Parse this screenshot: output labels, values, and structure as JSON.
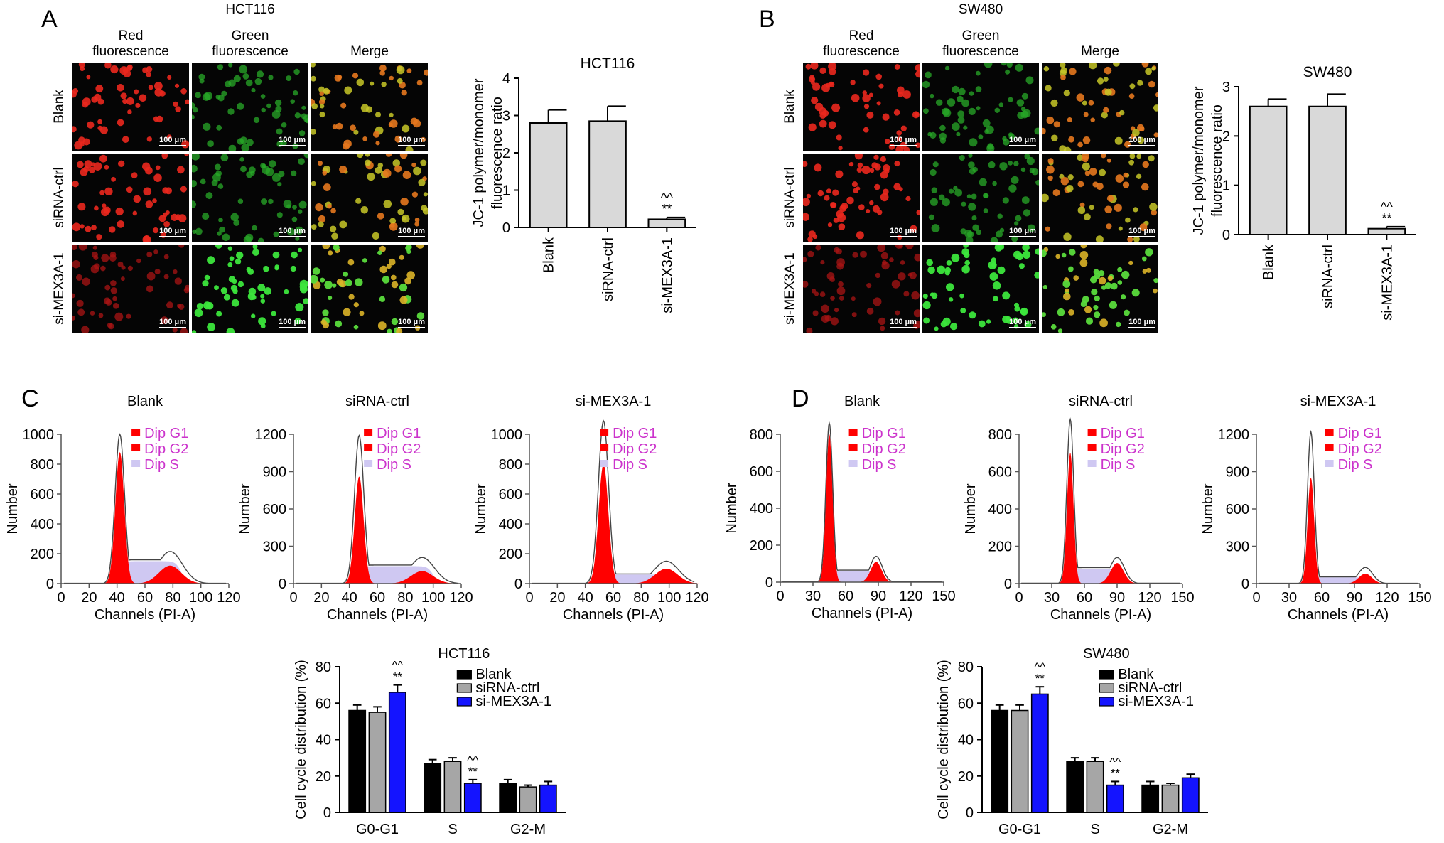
{
  "panels": {
    "A": {
      "letter": "A",
      "line_title": "HCT116",
      "cols": [
        "Red\nfluorescence",
        "Green\nfluorescence",
        "Merge"
      ],
      "rows": [
        "Blank",
        "siRNA-ctrl",
        "si-MEX3A-1"
      ],
      "scalebar": "100 μm"
    },
    "B": {
      "letter": "B",
      "line_title": "SW480",
      "cols": [
        "Red\nfluorescence",
        "Green\nfluorescence",
        "Merge"
      ],
      "rows": [
        "Blank",
        "siRNA-ctrl",
        "si-MEX3A-1"
      ],
      "scalebar": "100 μm"
    },
    "C": {
      "letter": "C"
    },
    "D": {
      "letter": "D"
    }
  },
  "colors": {
    "bar_gray": "#d9d9d9",
    "blank": "#000000",
    "sirna": "#a6a6a6",
    "mex": "#1414ff",
    "red": "#ff0000",
    "lav": "#cfc8f2",
    "legend_text": "#cc33cc"
  },
  "chart_data": [
    {
      "id": "jc1-hct116",
      "type": "bar",
      "title": "HCT116",
      "ylabel": "JC-1 polymer/monomer\nfluorescence ratio",
      "categories": [
        "Blank",
        "siRNA-ctrl",
        "si-MEX3A-1"
      ],
      "values": [
        2.8,
        2.85,
        0.22
      ],
      "errors": [
        0.35,
        0.4,
        0.05
      ],
      "ylim": [
        0,
        4
      ],
      "yticks": [
        0,
        1,
        2,
        3,
        4
      ],
      "annotations": [
        {
          "category": "si-MEX3A-1",
          "lines": [
            "^^",
            "**"
          ]
        }
      ]
    },
    {
      "id": "jc1-sw480",
      "type": "bar",
      "title": "SW480",
      "ylabel": "JC-1 polymer/monomer\nfluorescence ratio",
      "categories": [
        "Blank",
        "siRNA-ctrl",
        "si-MEX3A-1"
      ],
      "values": [
        2.6,
        2.6,
        0.12
      ],
      "errors": [
        0.15,
        0.25,
        0.04
      ],
      "ylim": [
        0,
        3
      ],
      "yticks": [
        0,
        1,
        2,
        3
      ],
      "annotations": [
        {
          "category": "si-MEX3A-1",
          "lines": [
            "^^",
            "**"
          ]
        }
      ]
    },
    {
      "id": "hist-c-blank",
      "type": "area",
      "title": "Blank",
      "xlabel": "Channels (PI-A)",
      "ylabel": "Number",
      "xlim": [
        0,
        120
      ],
      "xticks": [
        0,
        20,
        40,
        60,
        80,
        100,
        120
      ],
      "ylim": [
        0,
        1000
      ],
      "yticks": [
        0,
        200,
        400,
        600,
        800,
        1000
      ],
      "g1_peak": {
        "x": 42,
        "y": 880,
        "sd": 3.2
      },
      "g2_peak": {
        "x": 78,
        "y": 120,
        "sd": 8
      },
      "s_level": 150,
      "outline_peak": 1000,
      "outline_g2": 215,
      "legend": [
        "Dip G1",
        "Dip G2",
        "Dip S"
      ]
    },
    {
      "id": "hist-c-sirna",
      "type": "area",
      "title": "siRNA-ctrl",
      "xlabel": "Channels (PI-A)",
      "ylabel": "Number",
      "xlim": [
        0,
        120
      ],
      "xticks": [
        0,
        20,
        40,
        60,
        80,
        100,
        120
      ],
      "ylim": [
        0,
        1200
      ],
      "yticks": [
        0,
        300,
        600,
        900,
        1200
      ],
      "g1_peak": {
        "x": 47,
        "y": 860,
        "sd": 3.2
      },
      "g2_peak": {
        "x": 92,
        "y": 100,
        "sd": 8
      },
      "s_level": 140,
      "outline_peak": 1190,
      "outline_g2": 210,
      "legend": [
        "Dip G1",
        "Dip G2",
        "Dip S"
      ]
    },
    {
      "id": "hist-c-mex",
      "type": "area",
      "title": "si-MEX3A-1",
      "xlabel": "Channels (PI-A)",
      "ylabel": "Number",
      "xlim": [
        0,
        120
      ],
      "xticks": [
        0,
        20,
        40,
        60,
        80,
        100,
        120
      ],
      "ylim": [
        0,
        1000
      ],
      "yticks": [
        0,
        200,
        400,
        600,
        800,
        1000
      ],
      "g1_peak": {
        "x": 53,
        "y": 800,
        "sd": 3.5
      },
      "g2_peak": {
        "x": 98,
        "y": 100,
        "sd": 8
      },
      "s_level": 60,
      "outline_peak": 1090,
      "outline_g2": 150,
      "legend": [
        "Dip G1",
        "Dip G2",
        "Dip S"
      ]
    },
    {
      "id": "hist-d-blank",
      "type": "area",
      "title": "Blank",
      "xlabel": "Channels (PI-A)",
      "ylabel": "Number",
      "xlim": [
        0,
        150
      ],
      "xticks": [
        0,
        30,
        60,
        90,
        120,
        150
      ],
      "ylim": [
        0,
        800
      ],
      "yticks": [
        0,
        200,
        400,
        600,
        800
      ],
      "g1_peak": {
        "x": 45,
        "y": 800,
        "sd": 3
      },
      "g2_peak": {
        "x": 88,
        "y": 110,
        "sd": 5
      },
      "s_level": 60,
      "outline_peak": 860,
      "outline_g2": 140,
      "legend": [
        "Dip G1",
        "Dip G2",
        "Dip S"
      ]
    },
    {
      "id": "hist-d-sirna",
      "type": "area",
      "title": "siRNA-ctrl",
      "xlabel": "Channels (PI-A)",
      "ylabel": "Number",
      "xlim": [
        0,
        150
      ],
      "xticks": [
        0,
        30,
        60,
        90,
        120,
        150
      ],
      "ylim": [
        0,
        800
      ],
      "yticks": [
        0,
        200,
        400,
        600,
        800
      ],
      "g1_peak": {
        "x": 47,
        "y": 700,
        "sd": 3
      },
      "g2_peak": {
        "x": 90,
        "y": 110,
        "sd": 6
      },
      "s_level": 80,
      "outline_peak": 880,
      "outline_g2": 140,
      "legend": [
        "Dip G1",
        "Dip G2",
        "Dip S"
      ]
    },
    {
      "id": "hist-d-mex",
      "type": "area",
      "title": "si-MEX3A-1",
      "xlabel": "Channels (PI-A)",
      "ylabel": "Number",
      "xlim": [
        0,
        150
      ],
      "xticks": [
        0,
        30,
        60,
        90,
        120,
        150
      ],
      "ylim": [
        0,
        1200
      ],
      "yticks": [
        0,
        300,
        600,
        900,
        1200
      ],
      "g1_peak": {
        "x": 50,
        "y": 850,
        "sd": 3
      },
      "g2_peak": {
        "x": 100,
        "y": 80,
        "sd": 6
      },
      "s_level": 50,
      "outline_peak": 1220,
      "outline_g2": 130,
      "legend": [
        "Dip G1",
        "Dip G2",
        "Dip S"
      ]
    },
    {
      "id": "cellcycle-hct116",
      "type": "bar",
      "title": "HCT116",
      "ylabel": "Cell cycle distribution (%)",
      "categories": [
        "G0-G1",
        "S",
        "G2-M"
      ],
      "ylim": [
        0,
        80
      ],
      "yticks": [
        0,
        20,
        40,
        60,
        80
      ],
      "series": [
        {
          "name": "Blank",
          "values": [
            56,
            27,
            16
          ],
          "errors": [
            3,
            2,
            2
          ]
        },
        {
          "name": "siRNA-ctrl",
          "values": [
            55,
            28,
            14
          ],
          "errors": [
            3,
            2,
            1
          ]
        },
        {
          "name": "si-MEX3A-1",
          "values": [
            66,
            16,
            15
          ],
          "errors": [
            4,
            2,
            2
          ]
        }
      ],
      "annotations": [
        {
          "category": "G0-G1",
          "series": "si-MEX3A-1",
          "lines": [
            "^^",
            "**"
          ]
        },
        {
          "category": "S",
          "series": "si-MEX3A-1",
          "lines": [
            "^^",
            "**"
          ]
        }
      ]
    },
    {
      "id": "cellcycle-sw480",
      "type": "bar",
      "title": "SW480",
      "ylabel": "Cell cycle distribution (%)",
      "categories": [
        "G0-G1",
        "S",
        "G2-M"
      ],
      "ylim": [
        0,
        80
      ],
      "yticks": [
        0,
        20,
        40,
        60,
        80
      ],
      "series": [
        {
          "name": "Blank",
          "values": [
            56,
            28,
            15
          ],
          "errors": [
            3,
            2,
            2
          ]
        },
        {
          "name": "siRNA-ctrl",
          "values": [
            56,
            28,
            15
          ],
          "errors": [
            3,
            2,
            1
          ]
        },
        {
          "name": "si-MEX3A-1",
          "values": [
            65,
            15,
            19
          ],
          "errors": [
            4,
            2,
            2
          ]
        }
      ],
      "annotations": [
        {
          "category": "G0-G1",
          "series": "si-MEX3A-1",
          "lines": [
            "^^",
            "**"
          ]
        },
        {
          "category": "S",
          "series": "si-MEX3A-1",
          "lines": [
            "^^",
            "**"
          ]
        }
      ]
    }
  ]
}
